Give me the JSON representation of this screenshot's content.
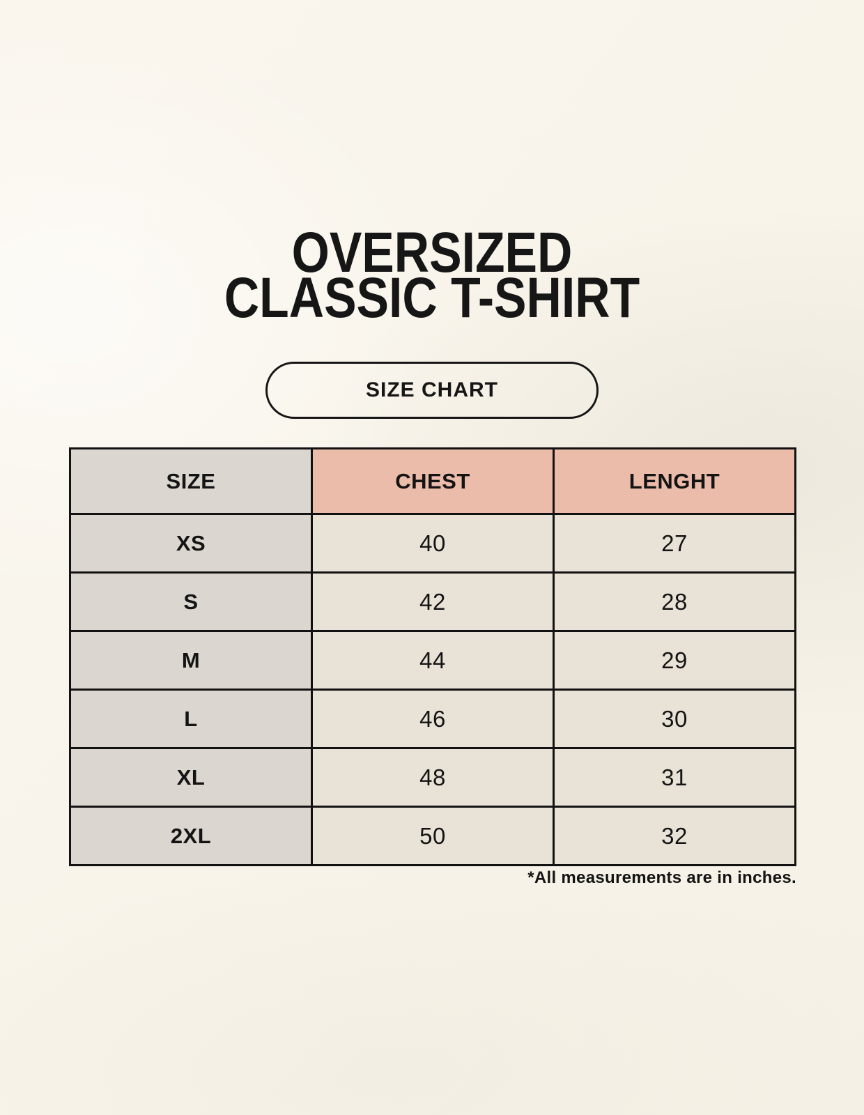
{
  "page": {
    "title": {
      "line1": "OVERSIZED",
      "line2": "CLASSIC T-SHIRT"
    },
    "badge": {
      "label": "SIZE CHART"
    },
    "footnote": "*All measurements are in inches."
  },
  "size_chart": {
    "columns": [
      "SIZE",
      "CHEST",
      "LENGHT"
    ],
    "rows": [
      {
        "size": "XS",
        "chest": "40",
        "lenght": "27"
      },
      {
        "size": "S",
        "chest": "42",
        "lenght": "28"
      },
      {
        "size": "M",
        "chest": "44",
        "lenght": "29"
      },
      {
        "size": "L",
        "chest": "46",
        "lenght": "30"
      },
      {
        "size": "XL",
        "chest": "48",
        "lenght": "31"
      },
      {
        "size": "2XL",
        "chest": "50",
        "lenght": "32"
      }
    ]
  },
  "colors": {
    "page_background": "#f9f5ec",
    "size_column_background": "#dcd6d0",
    "measurement_header_background": "#ecbcab",
    "data_cell_background": "#e9e2d6",
    "table_border": "#121212",
    "text": "#141414"
  }
}
